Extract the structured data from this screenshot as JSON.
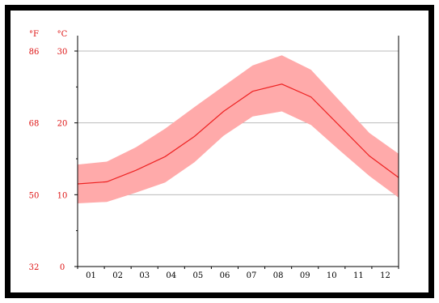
{
  "chart_data": {
    "type": "area",
    "categories": [
      "01",
      "02",
      "03",
      "04",
      "05",
      "06",
      "07",
      "08",
      "09",
      "10",
      "11",
      "12"
    ],
    "y_unit_label": "°C",
    "y2_unit_label": "°F",
    "ylim": [
      0,
      30
    ],
    "yticks": [
      0,
      10,
      20,
      30
    ],
    "yticks_f": [
      "32",
      "50",
      "68",
      "86"
    ],
    "grid": true,
    "series": [
      {
        "role": "mean",
        "values": [
          11.5,
          11.8,
          13.4,
          15.3,
          18.1,
          21.6,
          24.4,
          25.4,
          23.6,
          19.5,
          15.4,
          12.4
        ]
      },
      {
        "role": "upper",
        "values": [
          14.2,
          14.6,
          16.6,
          19.2,
          22.2,
          25.1,
          28.0,
          29.4,
          27.4,
          23.0,
          18.6,
          15.7
        ]
      },
      {
        "role": "lower",
        "values": [
          8.8,
          9.0,
          10.3,
          11.7,
          14.5,
          18.2,
          20.9,
          21.6,
          19.7,
          16.1,
          12.6,
          9.6
        ]
      }
    ],
    "colors": {
      "mean": "#ee2222",
      "band": "#ffaaaa",
      "axis_label": "#dd1111",
      "grid": "#bbbbbb",
      "axis": "#000000"
    }
  }
}
